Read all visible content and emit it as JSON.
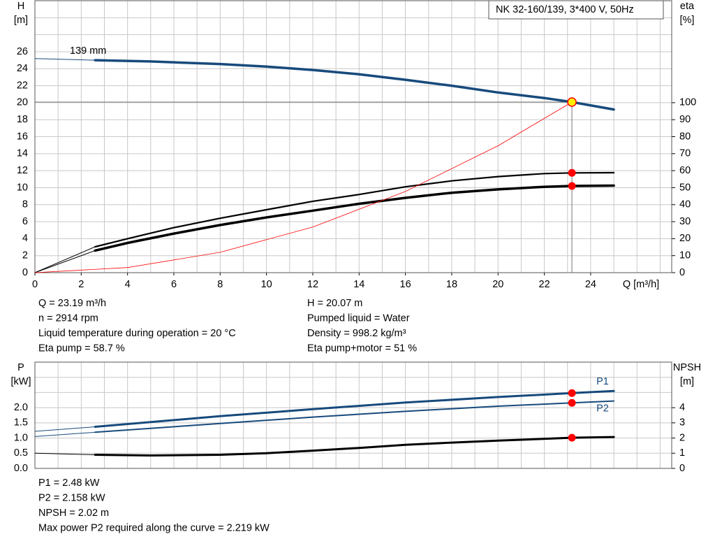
{
  "chart_data": [
    {
      "type": "line",
      "title": "NK 32-160/139, 3*400 V, 50Hz",
      "annotation": "139 mm",
      "xlabel": "Q [m³/h]",
      "ylabel": [
        "H",
        "[m]"
      ],
      "y2label": [
        "eta",
        "[%]"
      ],
      "xlim": [
        0,
        27.5
      ],
      "xticks": [
        0,
        2,
        4,
        6,
        8,
        10,
        12,
        14,
        16,
        18,
        20,
        22,
        24
      ],
      "xminorticks": [
        1,
        3,
        5,
        7,
        9,
        11,
        13,
        15,
        17,
        19,
        21,
        23,
        25,
        26,
        27
      ],
      "ylim": [
        0,
        32
      ],
      "yticks": [
        0,
        2,
        4,
        6,
        8,
        10,
        12,
        14,
        16,
        18,
        20,
        22,
        24,
        26
      ],
      "yminorticks": [
        28,
        30
      ],
      "y2lim": [
        0,
        160
      ],
      "y2ticks": [
        0,
        10,
        20,
        30,
        40,
        50,
        60,
        70,
        80,
        90,
        100
      ],
      "grid": true,
      "series": [
        {
          "color": "#174a7c",
          "width": 1,
          "x": [
            0,
            2.6
          ],
          "values": [
            25.2,
            25.0
          ]
        },
        {
          "color": "#174a7c",
          "width": 3.5,
          "x": [
            2.6,
            5,
            8,
            10,
            12,
            14,
            16,
            18,
            20,
            22,
            23.19,
            25
          ],
          "values": [
            25.0,
            24.85,
            24.55,
            24.25,
            23.85,
            23.35,
            22.7,
            22.0,
            21.2,
            20.55,
            20.07,
            19.2
          ]
        },
        {
          "color": "#000000",
          "width": 1,
          "axis": "y2",
          "x": [
            0,
            2.6
          ],
          "values": [
            0,
            15.2
          ]
        },
        {
          "color": "#000000",
          "width": 2.2,
          "axis": "y2",
          "x": [
            2.6,
            4,
            6,
            8,
            10,
            12,
            14,
            16,
            18,
            20,
            22,
            23.19,
            25
          ],
          "values": [
            15.2,
            20,
            26.5,
            32,
            37,
            42,
            46,
            50.5,
            54,
            56.5,
            58.3,
            58.7,
            58.8
          ]
        },
        {
          "color": "#000000",
          "width": 1,
          "axis": "y2",
          "x": [
            0,
            2.6
          ],
          "values": [
            0,
            13
          ]
        },
        {
          "color": "#000000",
          "width": 3.5,
          "axis": "y2",
          "x": [
            2.6,
            4,
            6,
            8,
            10,
            12,
            14,
            16,
            18,
            20,
            22,
            23.19,
            25
          ],
          "values": [
            13,
            17.5,
            23,
            28,
            32.5,
            36.5,
            40.5,
            44,
            47,
            49,
            50.5,
            51,
            51.2
          ]
        },
        {
          "color": "#ff0000",
          "width": 0.8,
          "x": [
            0,
            4,
            8,
            12,
            16,
            20,
            23.19
          ],
          "values": [
            0,
            0.6,
            2.39,
            5.37,
            9.55,
            14.93,
            20.07
          ]
        }
      ],
      "duty_point": {
        "x": 23.19,
        "y": [
          20.07
        ],
        "y2": [
          58.7,
          51
        ]
      },
      "notes": [
        [
          "Q = 23.19 m³/h",
          "n = 2914 rpm",
          "Liquid temperature during operation = 20 °C",
          "Eta pump = 58.7 %"
        ],
        [
          "H = 20.07 m",
          "Pumped liquid = Water",
          "Density = 998.2 kg/m³",
          "Eta pump+motor = 51 %"
        ]
      ]
    },
    {
      "type": "line",
      "ylabel": [
        "P",
        "[kW]"
      ],
      "y2label": [
        "NPSH",
        "[m]"
      ],
      "xlim": [
        0,
        27.5
      ],
      "xminorticks": [
        1,
        2,
        3,
        4,
        5,
        6,
        7,
        8,
        9,
        10,
        11,
        12,
        13,
        14,
        15,
        16,
        17,
        18,
        19,
        20,
        21,
        22,
        23,
        24,
        25,
        26,
        27
      ],
      "ylim": [
        0,
        3.5
      ],
      "yticks": [
        {
          "value": 0,
          "label": "0.0"
        },
        0.5,
        {
          "value": 1,
          "label": "1.0"
        },
        1.5,
        {
          "value": 2,
          "label": "2.0"
        }
      ],
      "yminorticks": [
        2.5,
        3
      ],
      "y2lim": [
        0,
        7
      ],
      "y2ticks": [
        0,
        1,
        2,
        3,
        4
      ],
      "grid": true,
      "series": [
        {
          "color": "#174a7c",
          "width": 1,
          "x": [
            0,
            2.6
          ],
          "values": [
            1.22,
            1.37
          ]
        },
        {
          "name": "P1",
          "color": "#174a7c",
          "width": 3,
          "x": [
            2.6,
            8,
            12,
            16,
            20,
            23.19,
            25
          ],
          "values": [
            1.37,
            1.72,
            1.95,
            2.17,
            2.35,
            2.48,
            2.55
          ]
        },
        {
          "color": "#174a7c",
          "width": 1,
          "x": [
            0,
            2.6
          ],
          "values": [
            1.05,
            1.19
          ]
        },
        {
          "name": "P2",
          "color": "#174a7c",
          "width": 2,
          "x": [
            2.6,
            8,
            12,
            16,
            20,
            23.19,
            25
          ],
          "values": [
            1.19,
            1.48,
            1.69,
            1.88,
            2.05,
            2.158,
            2.22
          ]
        },
        {
          "color": "#000000",
          "width": 1,
          "axis": "y2",
          "x": [
            0,
            2.6
          ],
          "values": [
            1.0,
            0.9
          ]
        },
        {
          "color": "#000000",
          "width": 3,
          "axis": "y2",
          "x": [
            2.6,
            5,
            8,
            10,
            12,
            14,
            16,
            18,
            20,
            23.19,
            25
          ],
          "values": [
            0.9,
            0.85,
            0.9,
            1.0,
            1.17,
            1.35,
            1.55,
            1.7,
            1.83,
            2.02,
            2.07
          ]
        }
      ],
      "duty_point": {
        "x": 23.19,
        "y": [
          2.48,
          2.158
        ],
        "y2": [
          2.02
        ]
      },
      "notes": [
        [
          "P1 = 2.48 kW",
          "P2 = 2.158 kW",
          "NPSH = 2.02 m",
          "Max power P2 required along the curve = 2.219 kW"
        ]
      ]
    }
  ]
}
